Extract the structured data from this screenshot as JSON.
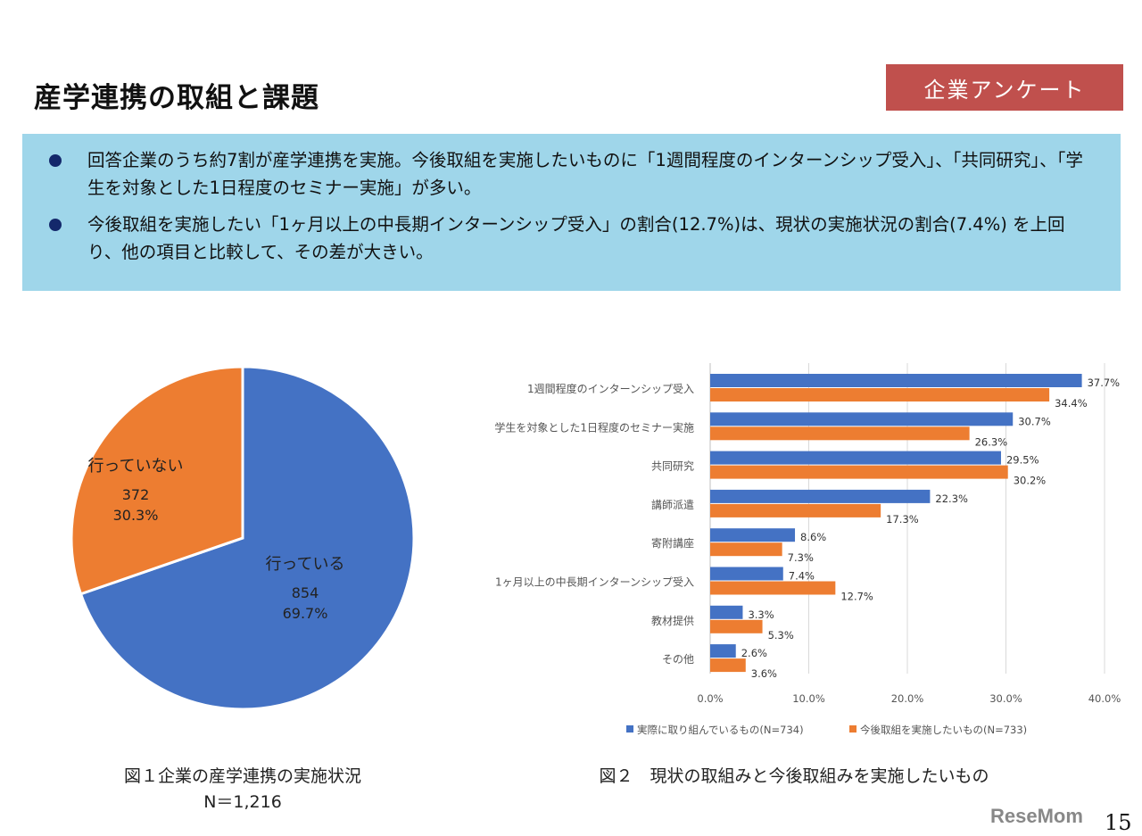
{
  "header": {
    "title": "産学連携の取組と課題",
    "badge": "企業アンケート"
  },
  "summary": {
    "bullets": [
      "回答企業のうち約7割が産学連携を実施。今後取組を実施したいものに「1週間程度のインターンシップ受入」、「共同研究」、「学生を対象とした1日程度のセミナー実施」が多い。",
      "今後取組を実施したい「1ヶ月以上の中長期インターンシップ受入」の割合(12.7%)は、現状の実施状況の割合(7.4%) を上回り、他の項目と比較して、その差が大きい。"
    ]
  },
  "chart_data": [
    {
      "type": "pie",
      "title": "図１企業の産学連携の実施状況",
      "subtitle": "N＝1,216",
      "slices": [
        {
          "label": "行っている",
          "count": "854",
          "percent": "69.7%",
          "value": 69.7,
          "color": "#4472c4"
        },
        {
          "label": "行っていない",
          "count": "372",
          "percent": "30.3%",
          "value": 30.3,
          "color": "#ed7d31"
        }
      ]
    },
    {
      "type": "bar",
      "orientation": "horizontal",
      "title": "図２　現状の取組みと今後取組みを実施したいもの",
      "categories": [
        "1週間程度のインターンシップ受入",
        "学生を対象とした1日程度のセミナー実施",
        "共同研究",
        "講師派遣",
        "寄附講座",
        "1ヶ月以上の中長期インターンシップ受入",
        "教材提供",
        "その他"
      ],
      "series": [
        {
          "name": "実際に取り組んでいるもの(N=734)",
          "color": "#4472c4",
          "values": [
            37.7,
            30.7,
            29.5,
            22.3,
            8.6,
            7.4,
            3.3,
            2.6
          ],
          "labels": [
            "37.7%",
            "30.7%",
            "29.5%",
            "22.3%",
            "8.6%",
            "7.4%",
            "3.3%",
            "2.6%"
          ]
        },
        {
          "name": "今後取組を実施したいもの(N=733)",
          "color": "#ed7d31",
          "values": [
            34.4,
            26.3,
            30.2,
            17.3,
            7.3,
            12.7,
            5.3,
            3.6
          ],
          "labels": [
            "34.4%",
            "26.3%",
            "30.2%",
            "17.3%",
            "7.3%",
            "12.7%",
            "5.3%",
            "3.6%"
          ]
        }
      ],
      "xlim": [
        0,
        40
      ],
      "ticks": [
        "0.0%",
        "10.0%",
        "20.0%",
        "30.0%",
        "40.0%"
      ],
      "grid": true,
      "legend": "bottom"
    }
  ],
  "footer": {
    "page": "15",
    "logo": "ReseMom"
  }
}
